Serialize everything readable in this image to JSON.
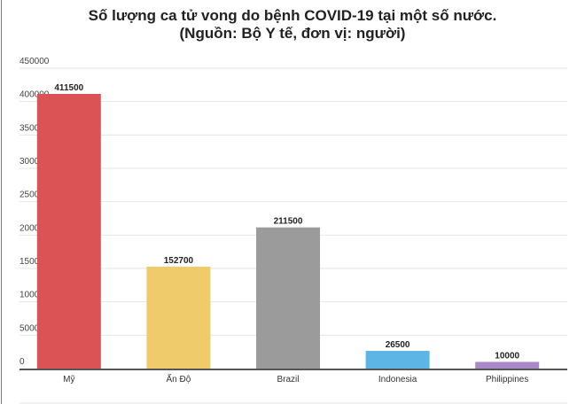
{
  "chart_data": {
    "type": "bar",
    "title": "Số lượng ca tử vong do bệnh COVID-19 tại một số nước.",
    "subtitle": "(Nguồn: Bộ Y tế, đơn vị: người)",
    "categories": [
      "Mỹ",
      "Ấn Độ",
      "Brazil",
      "Indonesia",
      "Philippines"
    ],
    "values": [
      411500,
      152700,
      211500,
      26500,
      10000
    ],
    "data_labels": [
      "411500",
      "152700",
      "211500",
      "26500",
      "10000"
    ],
    "colors": [
      "#dc5356",
      "#efcb6b",
      "#9b9b9b",
      "#5db5e5",
      "#a98ac8"
    ],
    "ylim": [
      0,
      450000
    ],
    "yticks": [
      "0",
      "50000",
      "100000",
      "150000",
      "200000",
      "250000",
      "300000",
      "350000",
      "400000",
      "450000"
    ],
    "grid": true,
    "xlabel": "",
    "ylabel": ""
  }
}
